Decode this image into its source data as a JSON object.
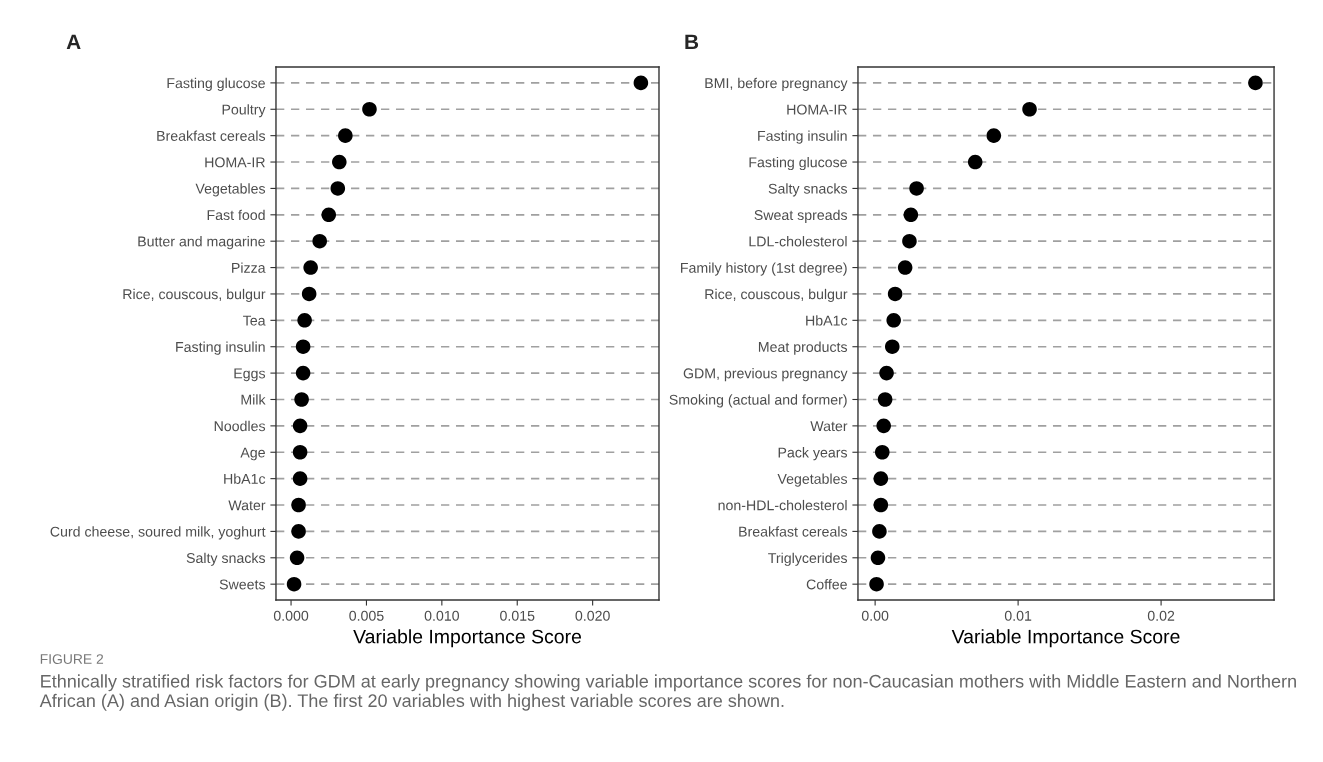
{
  "chart_data": [
    {
      "type": "scatter",
      "title": "A",
      "xlabel": "Variable Importance Score",
      "orientation": "horizontal",
      "grid": "y",
      "marker": "circle",
      "color": "#000000",
      "categories": [
        "Fasting glucose",
        "Poultry",
        "Breakfast cereals",
        "HOMA-IR",
        "Vegetables",
        "Fast food",
        "Butter and magarine",
        "Pizza",
        "Rice, couscous, bulgur",
        "Tea",
        "Fasting insulin",
        "Eggs",
        "Milk",
        "Noodles",
        "Age",
        "HbA1c",
        "Water",
        "Curd cheese, soured milk, yoghurt",
        "Salty snacks",
        "Sweets"
      ],
      "values": [
        0.0232,
        0.0052,
        0.0036,
        0.0032,
        0.0031,
        0.0025,
        0.0019,
        0.0013,
        0.0012,
        0.0009,
        0.0008,
        0.0008,
        0.0007,
        0.0006,
        0.0006,
        0.0006,
        0.0005,
        0.0005,
        0.0004,
        0.0002
      ],
      "xlim": [
        -0.001,
        0.0244
      ],
      "xticks": [
        {
          "value": 0,
          "label": "0.000"
        },
        {
          "value": 0.005,
          "label": "0.005"
        },
        {
          "value": 0.01,
          "label": "0.010"
        },
        {
          "value": 0.015,
          "label": "0.015"
        },
        {
          "value": 0.02,
          "label": "0.020"
        }
      ],
      "annotations": [
        "FIGURE 2",
        "Ethnically stratified risk factors for GDM at early pregnancy showing variable importance scores for non-Caucasian mothers with Middle Eastern and Northern African (A) and Asian origin (B). The first 20 variables with highest variable scores are shown."
      ]
    },
    {
      "type": "scatter",
      "title": "B",
      "xlabel": "Variable Importance Score",
      "orientation": "horizontal",
      "grid": "y",
      "marker": "circle",
      "color": "#000000",
      "categories": [
        "BMI, before pregnancy",
        "HOMA-IR",
        "Fasting insulin",
        "Fasting glucose",
        "Salty snacks",
        "Sweat spreads",
        "LDL-cholesterol",
        "Family history (1st degree)",
        "Rice, couscous, bulgur",
        "HbA1c",
        "Meat products",
        "GDM, previous pregnancy",
        "Smoking (actual and former)",
        "Water",
        "Pack years",
        "Vegetables",
        "non-HDL-cholesterol",
        "Breakfast cereals",
        "Triglycerides",
        "Coffee"
      ],
      "values": [
        0.0266,
        0.0108,
        0.0083,
        0.007,
        0.0029,
        0.0025,
        0.0024,
        0.0021,
        0.0014,
        0.0013,
        0.0012,
        0.0008,
        0.0007,
        0.0006,
        0.0005,
        0.0004,
        0.0004,
        0.0003,
        0.0002,
        0.0001
      ],
      "xlim": [
        -0.0012,
        0.0279
      ],
      "xticks": [
        {
          "value": 0,
          "label": "0.00"
        },
        {
          "value": 0.01,
          "label": "0.01"
        },
        {
          "value": 0.02,
          "label": "0.02"
        }
      ]
    }
  ]
}
